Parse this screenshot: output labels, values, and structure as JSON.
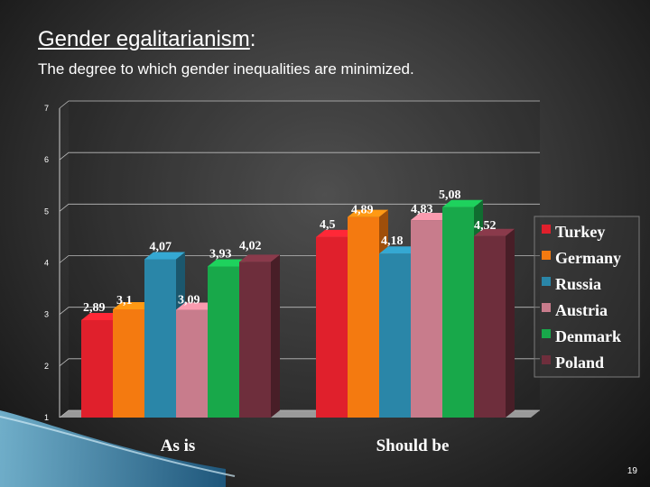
{
  "slide": {
    "title_main": "Gender egalitarianism",
    "title_suffix": ":",
    "subtitle": "The degree to which gender inequalities are minimized.",
    "page_number": "19"
  },
  "colors": {
    "Turkey": "#e0202c",
    "Germany": "#f47a10",
    "Russia": "#2a86a8",
    "Austria": "#c87c8c",
    "Denmark": "#18a84a",
    "Poland": "#6e2e3c"
  },
  "chart_data": {
    "type": "bar",
    "categories": [
      "As is",
      "Should be"
    ],
    "series": [
      {
        "name": "Turkey",
        "values": [
          2.89,
          4.5
        ],
        "labels": [
          "2,89",
          "4,5"
        ]
      },
      {
        "name": "Germany",
        "values": [
          3.1,
          4.89
        ],
        "labels": [
          "3,1",
          "4,89"
        ]
      },
      {
        "name": "Russia",
        "values": [
          4.07,
          4.18
        ],
        "labels": [
          "4,07",
          "4,18"
        ]
      },
      {
        "name": "Austria",
        "values": [
          3.09,
          4.83
        ],
        "labels": [
          "3,09",
          "4,83"
        ]
      },
      {
        "name": "Denmark",
        "values": [
          3.93,
          5.08
        ],
        "labels": [
          "3,93",
          "5,08"
        ]
      },
      {
        "name": "Poland",
        "values": [
          4.02,
          4.52
        ],
        "labels": [
          "4,02",
          "4,52"
        ]
      }
    ],
    "ylim": [
      1,
      7
    ],
    "yticks": [
      "1",
      "2",
      "3",
      "4",
      "5",
      "6",
      "7"
    ],
    "grid": true,
    "legend": "right"
  }
}
